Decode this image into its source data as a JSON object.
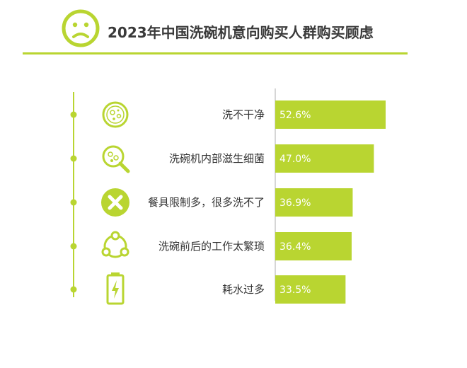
{
  "header": {
    "title": "2023年中国洗碗机意向购买人群购买顾虑",
    "icon": "sad-face-icon"
  },
  "colors": {
    "accent": "#b9d531",
    "text": "#333333",
    "value_text": "#ffffff"
  },
  "chart_data": {
    "type": "bar",
    "orientation": "horizontal",
    "title": "2023年中国洗碗机意向购买人群购买顾虑",
    "categories": [
      "洗不干净",
      "洗碗机内部滋生细菌",
      "餐具限制多，很多洗不了",
      "洗碗前后的工作太繁琐",
      "耗水过多"
    ],
    "values": [
      52.6,
      47.0,
      36.9,
      36.4,
      33.5
    ],
    "value_labels": [
      "52.6%",
      "47.0%",
      "36.9%",
      "36.4%",
      "33.5%"
    ],
    "icons": [
      "bacteria-dish-icon",
      "magnifier-bacteria-icon",
      "x-circle-icon",
      "cycle-icon",
      "battery-bolt-icon"
    ],
    "unit": "%",
    "xlim": [
      0,
      60
    ],
    "grid": false,
    "legend": "none"
  }
}
